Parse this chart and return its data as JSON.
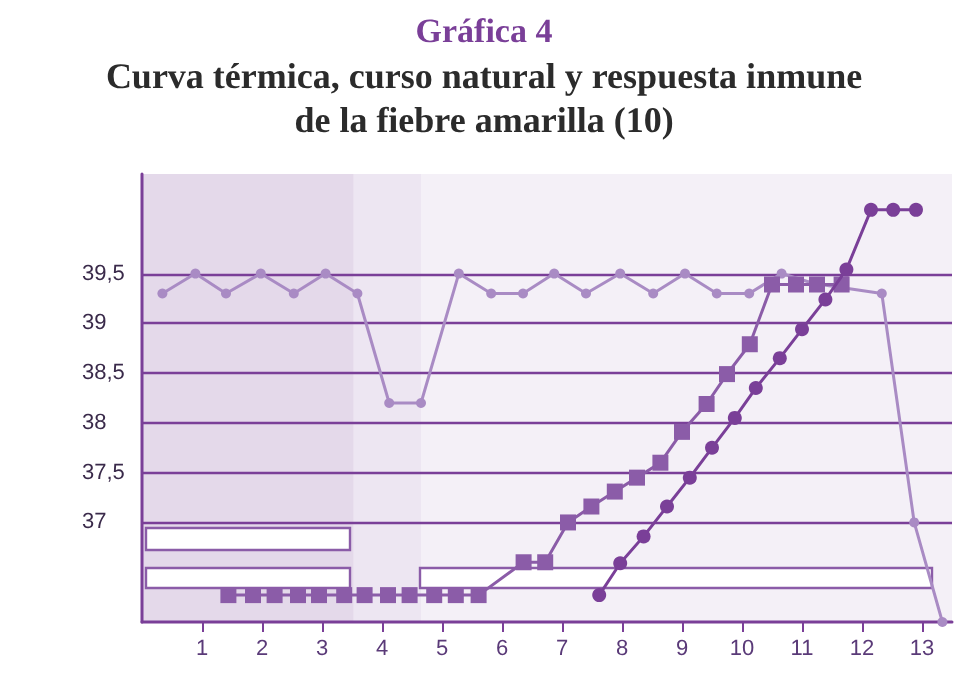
{
  "chart_data": {
    "type": "line",
    "title": "Gráfica 4",
    "subtitle": "Curva térmica, curso natural y respuesta inmune\nde la fiebre amarilla (10)",
    "xlim": [
      0,
      13.5
    ],
    "xticks": [
      1,
      2,
      3,
      4,
      5,
      6,
      7,
      8,
      9,
      10,
      11,
      12,
      13
    ],
    "ylim": [
      36,
      40.5
    ],
    "yticks": [
      {
        "value": 37,
        "label": "37"
      },
      {
        "value": 37.5,
        "label": "37,5"
      },
      {
        "value": 38,
        "label": "38"
      },
      {
        "value": 38.5,
        "label": "38,5"
      },
      {
        "value": 39,
        "label": "39"
      },
      {
        "value": 39.5,
        "label": "39,5"
      }
    ],
    "grid": "y",
    "line_style": "solid",
    "bands": [
      {
        "axis": "x",
        "from": 0,
        "to": 3.53,
        "color": "#e4d9ea"
      },
      {
        "axis": "x",
        "from": 3.53,
        "to": 4.65,
        "color": "#ede6f2"
      },
      {
        "axis": "x",
        "from": 4.65,
        "to": 13.5,
        "color": "#f4f0f7"
      }
    ],
    "series": [
      {
        "color": "#a98bc4",
        "marker": "circle",
        "x": [
          0.34,
          0.89,
          1.4,
          1.98,
          2.53,
          3.06,
          3.59,
          4.12,
          4.65,
          5.28,
          5.82,
          6.35,
          6.87,
          7.4,
          7.97,
          8.52,
          9.05,
          9.58,
          10.12,
          10.66,
          11.2,
          11.8,
          12.33,
          12.87,
          13.34
        ],
        "values": [
          39.3,
          39.5,
          39.3,
          39.5,
          39.3,
          39.5,
          39.3,
          38.2,
          38.2,
          39.5,
          39.3,
          39.3,
          39.5,
          39.3,
          39.5,
          39.3,
          39.5,
          39.3,
          39.3,
          39.5,
          39.4,
          null,
          39.3,
          37.0,
          36.0
        ]
      },
      {
        "color": "#8b5ca8",
        "marker": "square",
        "x": [
          1.44,
          1.85,
          2.21,
          2.6,
          2.95,
          3.37,
          3.71,
          4.1,
          4.46,
          4.87,
          5.23,
          5.61,
          6.36,
          6.72,
          7.1,
          7.49,
          7.88,
          8.25,
          8.64,
          9.0,
          9.41,
          9.75,
          10.13,
          10.5,
          10.9,
          11.25,
          11.66
        ],
        "values": [
          36.27,
          36.27,
          36.27,
          36.27,
          36.27,
          36.27,
          36.27,
          36.27,
          36.27,
          36.27,
          36.27,
          36.27,
          36.6,
          36.6,
          37.0,
          37.16,
          37.31,
          37.45,
          37.6,
          37.91,
          38.19,
          38.49,
          38.79,
          39.39,
          39.39,
          39.39,
          39.39
        ]
      },
      {
        "color": "#7a3f98",
        "marker": "circle",
        "x": [
          7.62,
          7.97,
          8.36,
          8.75,
          9.13,
          9.5,
          9.88,
          10.23,
          10.63,
          11.0,
          11.39,
          11.74,
          12.15,
          12.52,
          12.9
        ],
        "values": [
          36.27,
          36.59,
          36.86,
          37.16,
          37.45,
          37.75,
          38.05,
          38.35,
          38.65,
          38.94,
          39.24,
          39.54,
          40.14,
          40.14,
          40.14
        ]
      }
    ]
  }
}
